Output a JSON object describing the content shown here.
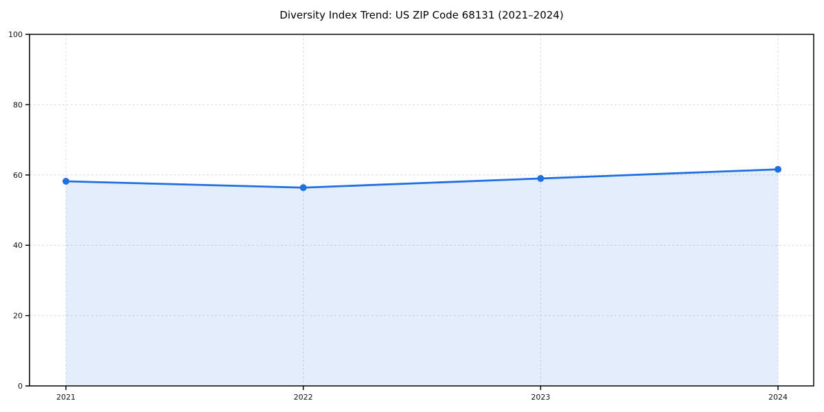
{
  "chart": {
    "title": "Diversity Index Trend: US ZIP Code 68131 (2021–2024)"
  },
  "chart_data": {
    "type": "area",
    "title": "Diversity Index Trend: US ZIP Code 68131 (2021–2024)",
    "categories": [
      "2021",
      "2022",
      "2023",
      "2024"
    ],
    "values": [
      58.2,
      56.4,
      59.0,
      61.6
    ],
    "series_name": "Diversity Index",
    "xlabel": "",
    "ylabel": "",
    "ylim": [
      0,
      100
    ],
    "yticks": [
      0,
      20,
      40,
      60,
      80,
      100
    ],
    "grid": true,
    "legend": "none",
    "colors": {
      "line": "#1f6fe0",
      "fill": "rgba(31,111,224,0.12)",
      "grid": "#dadada",
      "axis": "#000000",
      "tick_label": "#111111",
      "background": "#ffffff"
    }
  }
}
